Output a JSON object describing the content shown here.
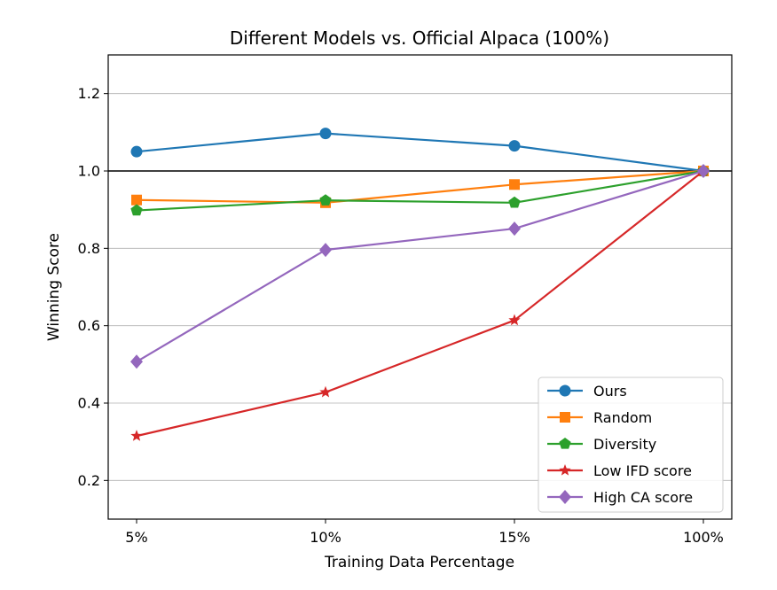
{
  "chart_data": {
    "type": "line",
    "title": "Different Models vs. Official Alpaca (100%)",
    "xlabel": "Training Data Percentage",
    "ylabel": "Winning Score",
    "categories": [
      "5%",
      "10%",
      "15%",
      "100%"
    ],
    "ylim": [
      0.1,
      1.3
    ],
    "yticks": [
      0.2,
      0.4,
      0.6,
      0.8,
      1.0,
      1.2
    ],
    "ytick_labels": [
      "0.2",
      "0.4",
      "0.6",
      "0.8",
      "1.0",
      "1.2"
    ],
    "grid": "horizontal",
    "reference_line": 1.0,
    "legend_position": "lower-right",
    "series": [
      {
        "name": "Ours",
        "values": [
          1.05,
          1.097,
          1.065,
          1.0
        ],
        "color": "#1f77b4",
        "marker": "circle"
      },
      {
        "name": "Random",
        "values": [
          0.925,
          0.918,
          0.965,
          1.0
        ],
        "color": "#ff7f0e",
        "marker": "square"
      },
      {
        "name": "Diversity",
        "values": [
          0.898,
          0.924,
          0.918,
          1.0
        ],
        "color": "#2ca02c",
        "marker": "pentagon"
      },
      {
        "name": "Low IFD score",
        "values": [
          0.315,
          0.428,
          0.614,
          1.0
        ],
        "color": "#d62728",
        "marker": "star"
      },
      {
        "name": "High CA score",
        "values": [
          0.507,
          0.796,
          0.851,
          1.0
        ],
        "color": "#9467bd",
        "marker": "diamond"
      }
    ]
  }
}
